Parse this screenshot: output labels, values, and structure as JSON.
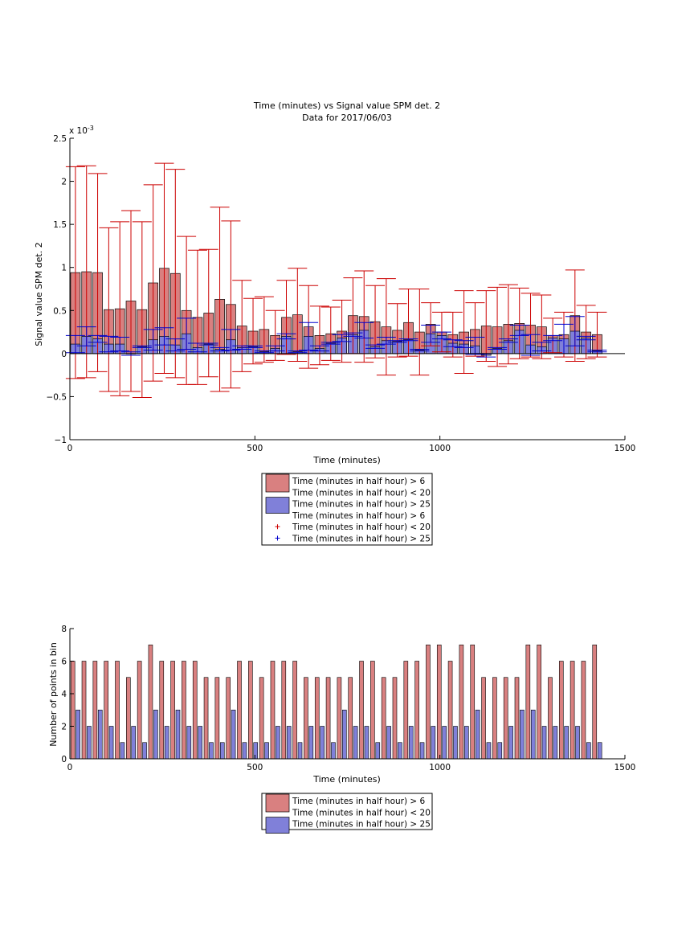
{
  "colors": {
    "red_fill": "#d98080",
    "blue_fill": "#8080d9",
    "red_err": "#cc0000",
    "blue_err": "#0000cc"
  },
  "chart_data": [
    {
      "type": "bar",
      "title": "Time (minutes) vs Signal value SPM det. 2",
      "subtitle": "Data for 2017/06/03",
      "xlabel": "Time (minutes)",
      "ylabel": "Signal value SPM det. 2",
      "y_exponent_label": "x 10",
      "y_exponent_power": "-3",
      "xlim": [
        0,
        1500
      ],
      "ylim": [
        -1,
        2.5
      ],
      "xticks": [
        "0",
        "500",
        "1000",
        "1500"
      ],
      "yticks": [
        "−1",
        "−0.5",
        "0",
        "0.5",
        "1",
        "1.5",
        "2",
        "2.5"
      ],
      "x": [
        15,
        45,
        75,
        105,
        135,
        165,
        195,
        225,
        255,
        285,
        315,
        345,
        375,
        405,
        435,
        465,
        495,
        525,
        555,
        585,
        615,
        645,
        675,
        705,
        735,
        765,
        795,
        825,
        855,
        885,
        915,
        945,
        975,
        1005,
        1035,
        1065,
        1095,
        1125,
        1155,
        1185,
        1215,
        1245,
        1275,
        1305,
        1335,
        1365,
        1395,
        1425
      ],
      "series": [
        {
          "name": "Time (minutes in half hour) > 6\nTime (minutes in half hour) < 20",
          "values": [
            0.94,
            0.95,
            0.94,
            0.51,
            0.52,
            0.61,
            0.51,
            0.82,
            0.99,
            0.93,
            0.5,
            0.42,
            0.47,
            0.63,
            0.57,
            0.32,
            0.26,
            0.28,
            0.21,
            0.42,
            0.45,
            0.31,
            0.21,
            0.23,
            0.26,
            0.44,
            0.43,
            0.37,
            0.31,
            0.27,
            0.36,
            0.25,
            0.34,
            0.25,
            0.22,
            0.25,
            0.28,
            0.32,
            0.31,
            0.34,
            0.35,
            0.33,
            0.31,
            0.21,
            0.22,
            0.44,
            0.25,
            0.22
          ],
          "err": [
            1.23,
            1.23,
            1.15,
            0.95,
            1.01,
            1.05,
            1.02,
            1.14,
            1.22,
            1.21,
            0.86,
            0.78,
            0.74,
            1.07,
            0.97,
            0.53,
            0.38,
            0.38,
            0.29,
            0.43,
            0.54,
            0.48,
            0.34,
            0.31,
            0.36,
            0.44,
            0.53,
            0.42,
            0.56,
            0.31,
            0.39,
            0.5,
            0.25,
            0.23,
            0.26,
            0.48,
            0.31,
            0.41,
            0.46,
            0.46,
            0.41,
            0.37,
            0.37,
            0.2,
            0.26,
            0.53,
            0.31,
            0.26
          ]
        },
        {
          "name": "Time (minutes in half hour) > 25",
          "values": [
            0.11,
            0.2,
            0.17,
            0.11,
            0.11,
            0.0,
            0.08,
            0.16,
            0.2,
            0.1,
            0.23,
            0.07,
            0.11,
            0.05,
            0.16,
            0.07,
            0.08,
            0.02,
            0.06,
            0.2,
            0.02,
            0.2,
            0.06,
            0.12,
            0.18,
            0.22,
            0.27,
            0.08,
            0.15,
            0.14,
            0.16,
            0.04,
            0.23,
            0.21,
            0.12,
            0.11,
            0.09,
            -0.02,
            0.06,
            0.15,
            0.27,
            0.1,
            0.08,
            0.18,
            0.17,
            0.26,
            0.18,
            0.03
          ],
          "err": [
            0.1,
            0.11,
            0.04,
            0.09,
            0.08,
            0.02,
            0.01,
            0.12,
            0.1,
            0.07,
            0.18,
            0.05,
            0.01,
            0.02,
            0.12,
            0.02,
            0.01,
            0.01,
            0.03,
            0.03,
            0.01,
            0.16,
            0.03,
            0.01,
            0.04,
            0.02,
            0.09,
            0.02,
            0.04,
            0.01,
            0.01,
            0.01,
            0.1,
            0.04,
            0.04,
            0.04,
            0.1,
            0.02,
            0.01,
            0.02,
            0.06,
            0.12,
            0.05,
            0.03,
            0.17,
            0.17,
            0.02,
            0.01
          ]
        }
      ],
      "legend": [
        {
          "marker": "bar",
          "color": "red",
          "label": "Time (minutes in half hour) > 6"
        },
        {
          "marker": "none",
          "color": "",
          "label": "Time (minutes in half hour) < 20"
        },
        {
          "marker": "bar",
          "color": "blue",
          "label": "Time (minutes in half hour) > 25"
        },
        {
          "marker": "none",
          "color": "",
          "label": "Time (minutes in half hour) > 6"
        },
        {
          "marker": "plus",
          "color": "red",
          "label": "Time (minutes in half hour) < 20"
        },
        {
          "marker": "plus",
          "color": "blue",
          "label": "Time (minutes in half hour) > 25"
        }
      ],
      "legend_position": "below"
    },
    {
      "type": "bar",
      "xlabel": "Time (minutes)",
      "ylabel": "Number of points in bin",
      "xlim": [
        0,
        1500
      ],
      "ylim": [
        0,
        8
      ],
      "xticks": [
        "0",
        "500",
        "1000",
        "1500"
      ],
      "yticks": [
        "0",
        "2",
        "4",
        "6",
        "8"
      ],
      "x": [
        15,
        45,
        75,
        105,
        135,
        165,
        195,
        225,
        255,
        285,
        315,
        345,
        375,
        405,
        435,
        465,
        495,
        525,
        555,
        585,
        615,
        645,
        675,
        705,
        735,
        765,
        795,
        825,
        855,
        885,
        915,
        945,
        975,
        1005,
        1035,
        1065,
        1095,
        1125,
        1155,
        1185,
        1215,
        1245,
        1275,
        1305,
        1335,
        1365,
        1395,
        1425
      ],
      "series": [
        {
          "name": "Time (minutes in half hour) > 6\nTime (minutes in half hour) < 20",
          "values": [
            6,
            6,
            6,
            6,
            6,
            5,
            6,
            7,
            6,
            6,
            6,
            6,
            5,
            5,
            5,
            6,
            6,
            5,
            6,
            6,
            6,
            5,
            5,
            5,
            5,
            5,
            6,
            6,
            5,
            5,
            6,
            6,
            7,
            7,
            6,
            7,
            7,
            5,
            5,
            5,
            5,
            7,
            7,
            5,
            6,
            6,
            6,
            7
          ]
        },
        {
          "name": "Time (minutes in half hour) > 25",
          "values": [
            3,
            2,
            3,
            2,
            1,
            2,
            1,
            3,
            2,
            3,
            2,
            2,
            1,
            1,
            3,
            1,
            1,
            1,
            2,
            2,
            1,
            2,
            2,
            1,
            3,
            2,
            2,
            1,
            2,
            1,
            2,
            1,
            2,
            2,
            2,
            2,
            3,
            1,
            1,
            2,
            3,
            3,
            2,
            2,
            2,
            2,
            1,
            1
          ]
        }
      ],
      "legend": [
        {
          "marker": "bar",
          "color": "red",
          "label": "Time (minutes in half hour) > 6"
        },
        {
          "marker": "none",
          "color": "",
          "label": "Time (minutes in half hour) < 20"
        },
        {
          "marker": "bar",
          "color": "blue",
          "label": "Time (minutes in half hour) > 25"
        }
      ],
      "legend_position": "below"
    }
  ]
}
